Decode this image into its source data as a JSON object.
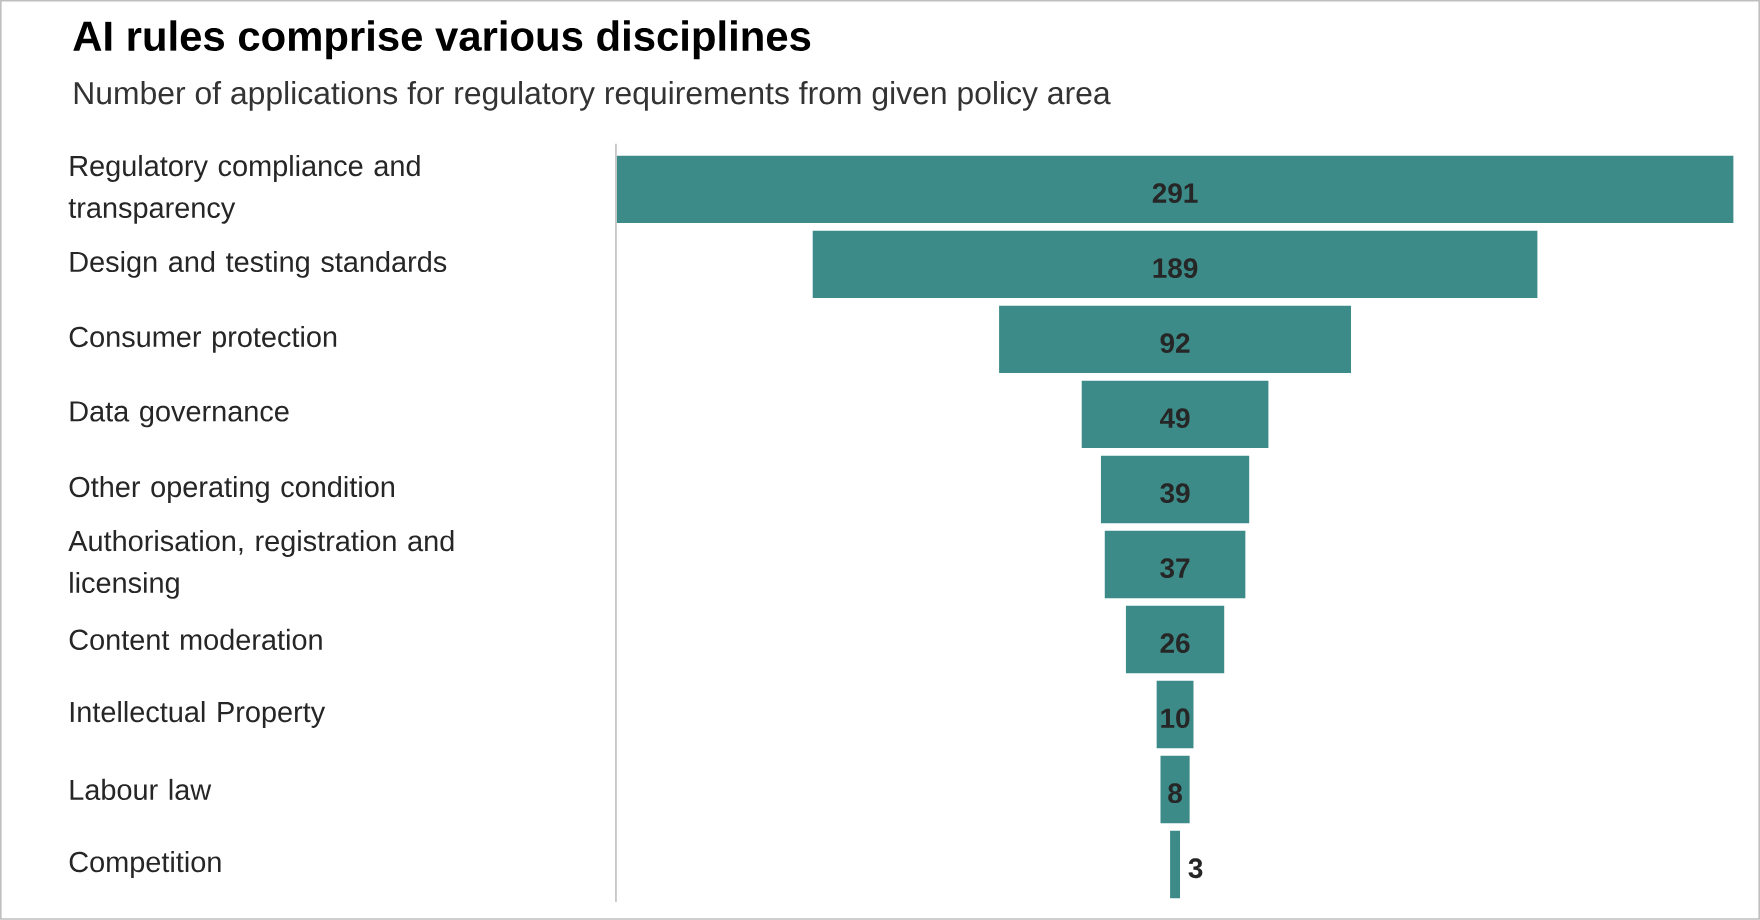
{
  "chart_data": {
    "type": "other",
    "title": "AI rules comprise various disciplines",
    "subtitle": "Number of applications for regulatory requirements from given policy area",
    "categories": [
      "Regulatory compliance and transparency",
      "Design and testing standards",
      "Consumer protection",
      "Data governance",
      "Other operating condition",
      "Authorisation, registration and licensing",
      "Content moderation",
      "Intellectual Property",
      "Labour law",
      "Competition"
    ],
    "values": [
      291,
      189,
      92,
      49,
      39,
      37,
      26,
      10,
      8,
      3
    ],
    "color": "#3d8b88",
    "data_labels": true
  }
}
